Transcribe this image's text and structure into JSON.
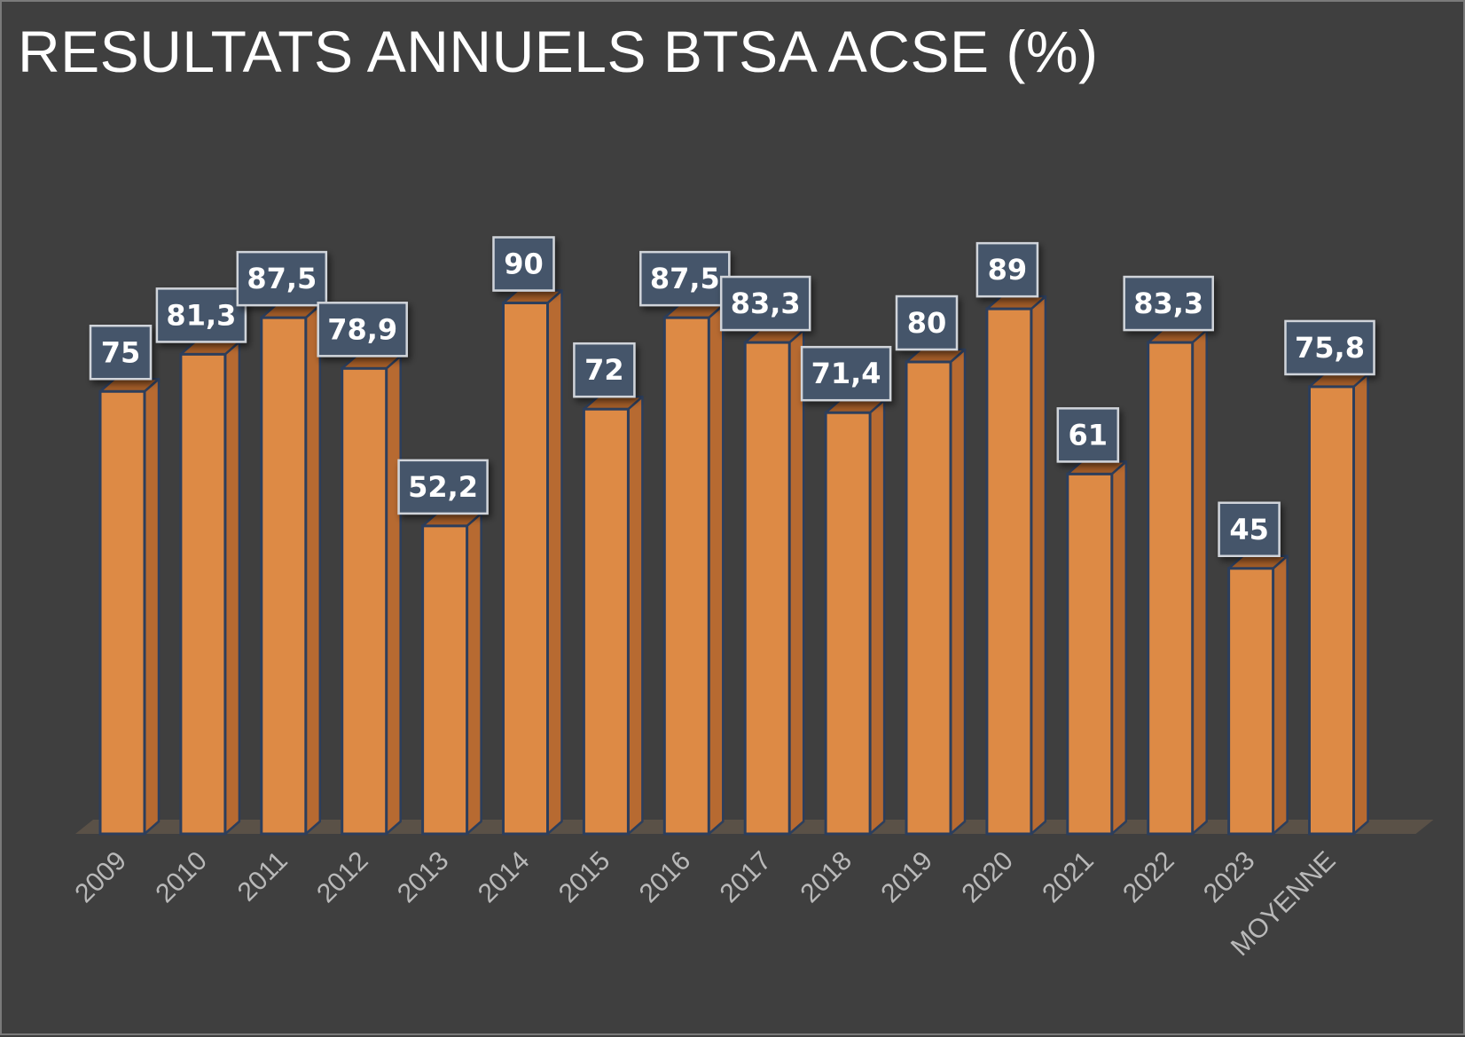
{
  "title": "RESULTATS ANNUELS BTSA ACSE (%)",
  "colors": {
    "background": "#3f3f3f",
    "bar_front": "#dd8a45",
    "bar_side": "#b76a31",
    "bar_top": "#a45d28",
    "bar_outline": "#2c3e5c",
    "label_box": "#44546a",
    "label_border": "#d0d4da",
    "floor": "#5a5147"
  },
  "chart_data": {
    "type": "bar",
    "title": "RESULTATS ANNUELS BTSA ACSE (%)",
    "xlabel": "",
    "ylabel": "",
    "ylim": [
      0,
      100
    ],
    "grid": false,
    "legend": "none",
    "categories": [
      "2009",
      "2010",
      "2011",
      "2012",
      "2013",
      "2014",
      "2015",
      "2016",
      "2017",
      "2018",
      "2019",
      "2020",
      "2021",
      "2022",
      "2023",
      "MOYENNE"
    ],
    "values": [
      75,
      81.3,
      87.5,
      78.9,
      52.2,
      90,
      72,
      87.5,
      83.3,
      71.4,
      80,
      89,
      61,
      83.3,
      45,
      75.8
    ],
    "value_labels": [
      "75",
      "81,3",
      "87,5",
      "78,9",
      "52,2",
      "90",
      "72",
      "87,5",
      "83,3",
      "71,4",
      "80",
      "89",
      "61",
      "83,3",
      "45",
      "75,8"
    ]
  }
}
